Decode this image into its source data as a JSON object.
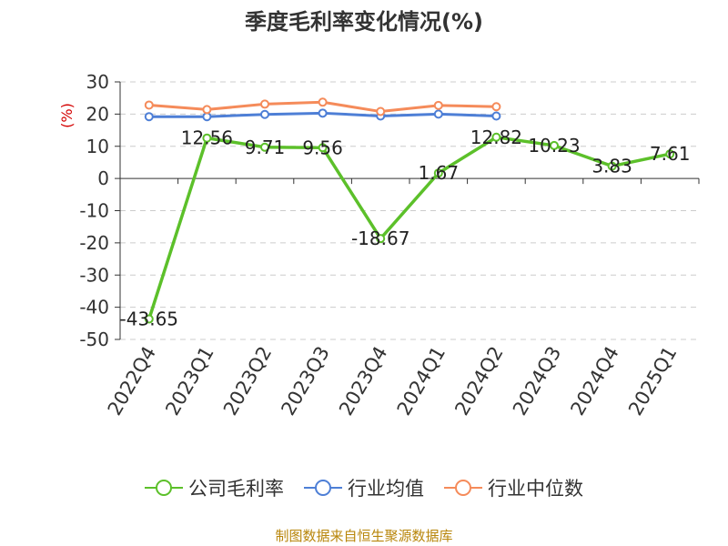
{
  "chart_data": {
    "type": "line",
    "title": "季度毛利率变化情况(%)",
    "ylabel": "(%)",
    "xlabel": "",
    "ylim": [
      -50,
      30
    ],
    "yticks": [
      30,
      20,
      10,
      0,
      -10,
      -20,
      -30,
      -40,
      -50
    ],
    "grid": true,
    "legend_position": "bottom",
    "categories": [
      "2022Q4",
      "2023Q1",
      "2023Q2",
      "2023Q3",
      "2023Q4",
      "2024Q1",
      "2024Q2",
      "2024Q3",
      "2024Q4",
      "2025Q1"
    ],
    "series": [
      {
        "name": "公司毛利率",
        "color": "#5cc02a",
        "show_labels": true,
        "values": [
          -43.65,
          12.56,
          9.71,
          9.56,
          -18.67,
          1.67,
          12.82,
          10.23,
          3.83,
          7.61
        ]
      },
      {
        "name": "行业均值",
        "color": "#4e7fd6",
        "show_labels": false,
        "values": [
          19.2,
          19.2,
          19.9,
          20.3,
          19.4,
          20.0,
          19.4,
          null,
          null,
          null
        ]
      },
      {
        "name": "行业中位数",
        "color": "#f58b5a",
        "show_labels": false,
        "values": [
          22.8,
          21.4,
          23.1,
          23.7,
          20.8,
          22.7,
          22.3,
          null,
          null,
          null
        ]
      }
    ]
  },
  "source_text": "制图数据来自恒生聚源数据库"
}
